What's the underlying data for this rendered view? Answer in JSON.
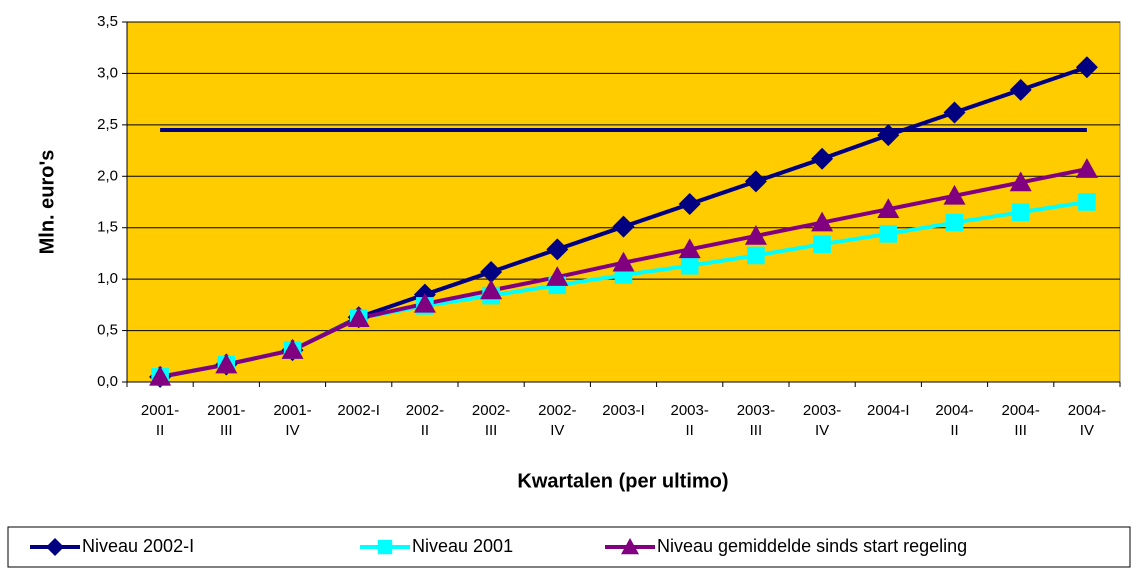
{
  "chart_data": {
    "type": "line",
    "x_label": "Kwartalen (per ultimo)",
    "y_label": "Mln. euro's",
    "categories": [
      "2001-\nII",
      "2001-\nIII",
      "2001-\nIV",
      "2002-I",
      "2002-\nII",
      "2002-\nIII",
      "2002-\nIV",
      "2003-I",
      "2003-\nII",
      "2003-\nIII",
      "2003-\nIV",
      "2004-I",
      "2004-\nII",
      "2004-\nIII",
      "2004-\nIV"
    ],
    "series": [
      {
        "name": "Niveau 2002-I",
        "color": "#000080",
        "marker": "diamond",
        "values": [
          0.05,
          0.17,
          0.31,
          0.63,
          0.85,
          1.07,
          1.29,
          1.51,
          1.73,
          1.95,
          2.17,
          2.4,
          2.62,
          2.84,
          3.06
        ]
      },
      {
        "name": "Niveau 2001",
        "color": "#00ffff",
        "marker": "square",
        "values": [
          0.05,
          0.17,
          0.31,
          0.62,
          0.74,
          0.84,
          0.94,
          1.04,
          1.13,
          1.23,
          1.34,
          1.44,
          1.55,
          1.65,
          1.75
        ]
      },
      {
        "name": "Niveau gemiddelde sinds start regeling",
        "color": "#800080",
        "marker": "triangle",
        "values": [
          0.05,
          0.17,
          0.31,
          0.62,
          0.76,
          0.89,
          1.02,
          1.16,
          1.29,
          1.42,
          1.55,
          1.68,
          1.81,
          1.94,
          2.07
        ]
      }
    ],
    "reference_line": {
      "value": 2.45,
      "color": "#000080"
    },
    "ylim": [
      0,
      3.5
    ],
    "yticks": [
      {
        "value": 0,
        "label": "0,0"
      },
      {
        "value": 0.5,
        "label": "0,5"
      },
      {
        "value": 1,
        "label": "1,0"
      },
      {
        "value": 1.5,
        "label": "1,5"
      },
      {
        "value": 2,
        "label": "2,0"
      },
      {
        "value": 2.5,
        "label": "2,5"
      },
      {
        "value": 3,
        "label": "3,0"
      },
      {
        "value": 3.5,
        "label": "3,5"
      }
    ],
    "grid": true,
    "plot_background": "#ffcc00",
    "legend_position": "bottom"
  }
}
